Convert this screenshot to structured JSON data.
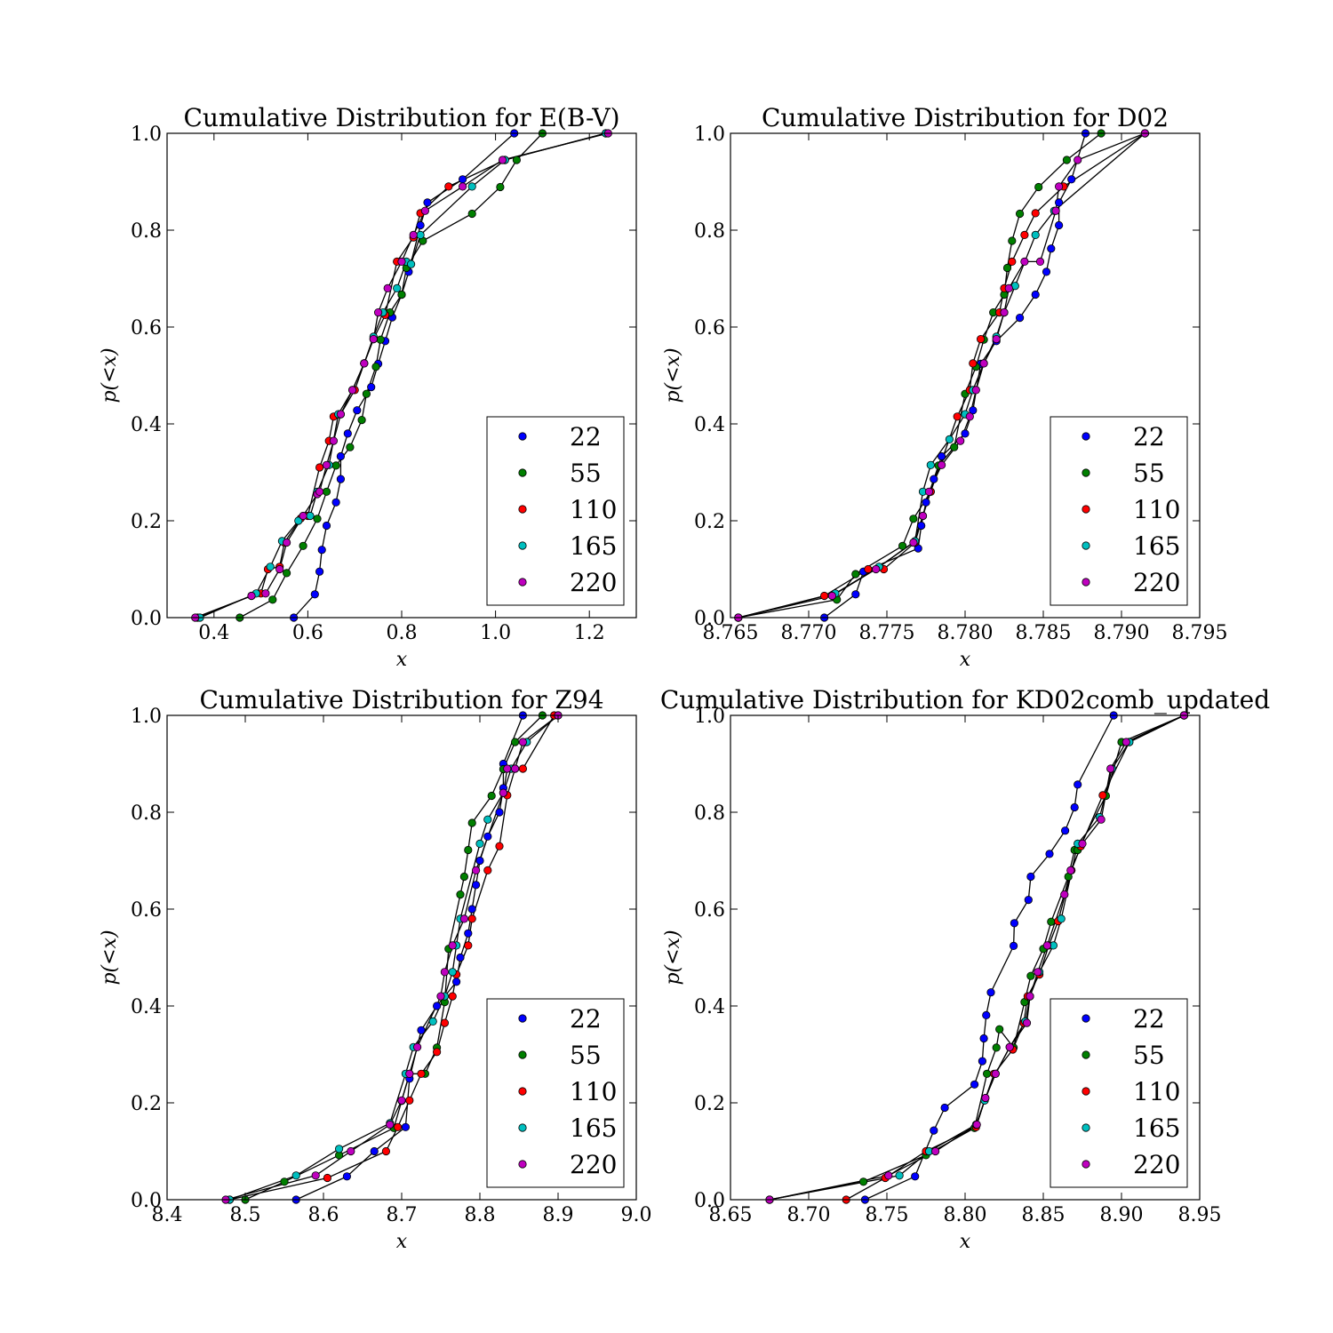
{
  "figure": {
    "xlabel": "x",
    "ylabel": "p(<x)"
  },
  "legend": {
    "placement": "lower-right",
    "entries": [
      {
        "label": "22",
        "color": "#0000ff"
      },
      {
        "label": "55",
        "color": "#007f00"
      },
      {
        "label": "110",
        "color": "#ff0000"
      },
      {
        "label": "165",
        "color": "#00bfbf"
      },
      {
        "label": "220",
        "color": "#bf00bf"
      }
    ]
  },
  "chart_data": [
    {
      "type": "line",
      "title": "Cumulative Distribution for E(B-V)",
      "xlabel": "x",
      "ylabel": "p(<x)",
      "xlim": [
        0.3,
        1.3
      ],
      "ylim": [
        0,
        1.0
      ],
      "xticks": [
        "0.4",
        "0.6",
        "0.8",
        "1.0",
        "1.2"
      ],
      "yticks": [
        "0.0",
        "0.2",
        "0.4",
        "0.6",
        "0.8",
        "1.0"
      ],
      "series": [
        {
          "name": "22",
          "color": "#0000ff",
          "x": [
            0.57,
            0.615,
            0.625,
            0.63,
            0.64,
            0.66,
            0.67,
            0.67,
            0.685,
            0.705,
            0.735,
            0.75,
            0.765,
            0.78,
            0.8,
            0.815,
            0.84,
            0.855,
            0.93,
            1.04
          ],
          "y": [
            0,
            0.048,
            0.095,
            0.14,
            0.19,
            0.238,
            0.286,
            0.333,
            0.38,
            0.428,
            0.476,
            0.524,
            0.571,
            0.62,
            0.667,
            0.714,
            0.81,
            0.857,
            0.905,
            1.0
          ]
        },
        {
          "name": "55",
          "color": "#007f00",
          "x": [
            0.455,
            0.525,
            0.555,
            0.59,
            0.62,
            0.64,
            0.66,
            0.69,
            0.715,
            0.725,
            0.745,
            0.755,
            0.775,
            0.8,
            0.81,
            0.845,
            0.95,
            1.01,
            1.045,
            1.1
          ],
          "y": [
            0,
            0.037,
            0.092,
            0.148,
            0.204,
            0.26,
            0.314,
            0.352,
            0.408,
            0.462,
            0.518,
            0.574,
            0.63,
            0.667,
            0.722,
            0.778,
            0.834,
            0.889,
            0.945,
            1.0
          ]
        },
        {
          "name": "110",
          "color": "#ff0000",
          "x": [
            0.365,
            0.48,
            0.5,
            0.515,
            0.54,
            0.55,
            0.585,
            0.6,
            0.625,
            0.645,
            0.655,
            0.67,
            0.7,
            0.72,
            0.74,
            0.765,
            0.79,
            0.825,
            0.84,
            0.9,
            1.02,
            1.235
          ],
          "y": [
            0,
            0.045,
            0.05,
            0.1,
            0.105,
            0.155,
            0.205,
            0.21,
            0.31,
            0.365,
            0.415,
            0.42,
            0.47,
            0.525,
            0.575,
            0.625,
            0.735,
            0.785,
            0.835,
            0.89,
            0.945,
            1.0
          ]
        },
        {
          "name": "165",
          "color": "#00bfbf",
          "x": [
            0.37,
            0.49,
            0.52,
            0.545,
            0.58,
            0.605,
            0.62,
            0.645,
            0.665,
            0.695,
            0.72,
            0.74,
            0.76,
            0.79,
            0.81,
            0.82,
            0.84,
            0.95,
            1.02,
            1.235
          ],
          "y": [
            0,
            0.05,
            0.105,
            0.158,
            0.2,
            0.21,
            0.26,
            0.315,
            0.42,
            0.47,
            0.525,
            0.58,
            0.63,
            0.68,
            0.735,
            0.73,
            0.79,
            0.89,
            0.945,
            1.0
          ]
        },
        {
          "name": "220",
          "color": "#bf00bf",
          "x": [
            0.36,
            0.48,
            0.51,
            0.54,
            0.555,
            0.59,
            0.62,
            0.625,
            0.64,
            0.655,
            0.67,
            0.695,
            0.72,
            0.74,
            0.75,
            0.77,
            0.8,
            0.825,
            0.85,
            0.93,
            1.015,
            1.24
          ],
          "y": [
            0,
            0.045,
            0.05,
            0.1,
            0.155,
            0.21,
            0.255,
            0.26,
            0.315,
            0.365,
            0.42,
            0.47,
            0.525,
            0.575,
            0.63,
            0.68,
            0.735,
            0.79,
            0.84,
            0.89,
            0.945,
            1.0
          ]
        }
      ]
    },
    {
      "type": "line",
      "title": "Cumulative Distribution for D02",
      "xlabel": "x",
      "ylabel": "p(<x)",
      "xlim": [
        8.765,
        8.795
      ],
      "ylim": [
        0,
        1.0
      ],
      "xticks": [
        "8.765",
        "8.770",
        "8.775",
        "8.780",
        "8.785",
        "8.790",
        "8.795"
      ],
      "yticks": [
        "0.0",
        "0.2",
        "0.4",
        "0.6",
        "0.8",
        "1.0"
      ],
      "series": [
        {
          "name": "22",
          "color": "#0000ff",
          "x": [
            8.771,
            8.773,
            8.7735,
            8.777,
            8.7772,
            8.7775,
            8.778,
            8.7785,
            8.78,
            8.7805,
            8.781,
            8.782,
            8.7835,
            8.7845,
            8.7852,
            8.7855,
            8.786,
            8.786,
            8.7868,
            8.7877
          ],
          "y": [
            0,
            0.048,
            0.095,
            0.143,
            0.19,
            0.238,
            0.286,
            0.333,
            0.38,
            0.428,
            0.524,
            0.571,
            0.619,
            0.667,
            0.714,
            0.762,
            0.81,
            0.857,
            0.905,
            1.0
          ]
        },
        {
          "name": "55",
          "color": "#007f00",
          "x": [
            8.7655,
            8.7718,
            8.773,
            8.776,
            8.7767,
            8.7778,
            8.7783,
            8.7793,
            8.78,
            8.7807,
            8.7812,
            8.7818,
            8.7825,
            8.7827,
            8.783,
            8.7835,
            8.7847,
            8.7865,
            8.7887
          ],
          "y": [
            0,
            0.037,
            0.09,
            0.148,
            0.204,
            0.26,
            0.314,
            0.352,
            0.462,
            0.518,
            0.574,
            0.63,
            0.667,
            0.722,
            0.778,
            0.834,
            0.889,
            0.945,
            1.0
          ]
        },
        {
          "name": "110",
          "color": "#ff0000",
          "x": [
            8.7655,
            8.771,
            8.7738,
            8.7748,
            8.7768,
            8.7773,
            8.7778,
            8.7795,
            8.7803,
            8.7805,
            8.781,
            8.7822,
            8.7825,
            8.783,
            8.7838,
            8.7845,
            8.7863,
            8.7915
          ],
          "y": [
            0,
            0.045,
            0.1,
            0.1,
            0.155,
            0.21,
            0.26,
            0.415,
            0.47,
            0.525,
            0.575,
            0.63,
            0.68,
            0.735,
            0.79,
            0.835,
            0.89,
            1.0
          ]
        },
        {
          "name": "165",
          "color": "#00bfbf",
          "x": [
            8.7655,
            8.7717,
            8.7745,
            8.7768,
            8.7773,
            8.7778,
            8.779,
            8.78,
            8.7805,
            8.7812,
            8.782,
            8.7825,
            8.7832,
            8.7845,
            8.7857,
            8.7915
          ],
          "y": [
            0,
            0.05,
            0.105,
            0.158,
            0.26,
            0.315,
            0.368,
            0.42,
            0.47,
            0.525,
            0.58,
            0.63,
            0.685,
            0.79,
            0.84,
            1.0
          ]
        },
        {
          "name": "220",
          "color": "#bf00bf",
          "x": [
            8.7655,
            8.7715,
            8.7743,
            8.7767,
            8.7773,
            8.7777,
            8.7785,
            8.7797,
            8.7803,
            8.7807,
            8.7812,
            8.782,
            8.7825,
            8.7828,
            8.7838,
            8.7848,
            8.7858,
            8.786,
            8.7872,
            8.7915
          ],
          "y": [
            0,
            0.045,
            0.1,
            0.155,
            0.21,
            0.26,
            0.315,
            0.365,
            0.415,
            0.47,
            0.525,
            0.575,
            0.63,
            0.68,
            0.735,
            0.735,
            0.84,
            0.89,
            0.945,
            1.0
          ]
        }
      ]
    },
    {
      "type": "line",
      "title": "Cumulative Distribution for Z94",
      "xlabel": "x",
      "ylabel": "p(<x)",
      "xlim": [
        8.4,
        9.0
      ],
      "ylim": [
        0,
        1.0
      ],
      "xticks": [
        "8.4",
        "8.5",
        "8.6",
        "8.7",
        "8.8",
        "8.9",
        "9.0"
      ],
      "yticks": [
        "0.0",
        "0.2",
        "0.4",
        "0.6",
        "0.8",
        "1.0"
      ],
      "series": [
        {
          "name": "22",
          "color": "#0000ff",
          "x": [
            8.565,
            8.63,
            8.665,
            8.705,
            8.71,
            8.725,
            8.745,
            8.77,
            8.775,
            8.785,
            8.79,
            8.795,
            8.8,
            8.81,
            8.825,
            8.83,
            8.83,
            8.855
          ],
          "y": [
            0,
            0.048,
            0.1,
            0.15,
            0.25,
            0.35,
            0.4,
            0.45,
            0.5,
            0.55,
            0.6,
            0.65,
            0.7,
            0.75,
            0.8,
            0.85,
            0.9,
            1.0
          ]
        },
        {
          "name": "55",
          "color": "#007f00",
          "x": [
            8.5,
            8.55,
            8.62,
            8.69,
            8.7,
            8.71,
            8.73,
            8.745,
            8.755,
            8.76,
            8.775,
            8.78,
            8.785,
            8.79,
            8.815,
            8.83,
            8.845,
            8.88
          ],
          "y": [
            0,
            0.037,
            0.092,
            0.148,
            0.204,
            0.26,
            0.26,
            0.314,
            0.408,
            0.518,
            0.63,
            0.667,
            0.722,
            0.778,
            0.834,
            0.889,
            0.945,
            1.0
          ]
        },
        {
          "name": "110",
          "color": "#ff0000",
          "x": [
            8.48,
            8.605,
            8.68,
            8.695,
            8.71,
            8.725,
            8.745,
            8.755,
            8.765,
            8.77,
            8.785,
            8.79,
            8.81,
            8.825,
            8.835,
            8.845,
            8.855,
            8.895
          ],
          "y": [
            0,
            0.045,
            0.1,
            0.15,
            0.205,
            0.26,
            0.305,
            0.365,
            0.42,
            0.465,
            0.525,
            0.58,
            0.68,
            0.73,
            0.835,
            0.89,
            0.89,
            1.0
          ]
        },
        {
          "name": "165",
          "color": "#00bfbf",
          "x": [
            8.48,
            8.565,
            8.62,
            8.685,
            8.705,
            8.715,
            8.74,
            8.755,
            8.765,
            8.77,
            8.775,
            8.8,
            8.81,
            8.83,
            8.84,
            8.86,
            8.9
          ],
          "y": [
            0,
            0.05,
            0.105,
            0.158,
            0.26,
            0.315,
            0.368,
            0.42,
            0.47,
            0.525,
            0.58,
            0.735,
            0.785,
            0.84,
            0.89,
            0.945,
            1.0
          ]
        },
        {
          "name": "220",
          "color": "#bf00bf",
          "x": [
            8.475,
            8.59,
            8.635,
            8.685,
            8.7,
            8.71,
            8.72,
            8.75,
            8.755,
            8.765,
            8.78,
            8.795,
            8.83,
            8.835,
            8.845,
            8.855,
            8.9
          ],
          "y": [
            0,
            0.05,
            0.1,
            0.155,
            0.205,
            0.26,
            0.315,
            0.42,
            0.47,
            0.525,
            0.58,
            0.68,
            0.84,
            0.89,
            0.89,
            0.945,
            1.0
          ]
        }
      ]
    },
    {
      "type": "line",
      "title": "Cumulative Distribution for KD02comb_updated",
      "xlabel": "x",
      "ylabel": "p(<x)",
      "xlim": [
        8.65,
        8.95
      ],
      "ylim": [
        0,
        1.0
      ],
      "xticks": [
        "8.65",
        "8.70",
        "8.75",
        "8.80",
        "8.85",
        "8.90",
        "8.95"
      ],
      "yticks": [
        "0.0",
        "0.2",
        "0.4",
        "0.6",
        "0.8",
        "1.0"
      ],
      "series": [
        {
          "name": "22",
          "color": "#0000ff",
          "x": [
            8.736,
            8.768,
            8.78,
            8.787,
            8.806,
            8.811,
            8.812,
            8.8135,
            8.8165,
            8.831,
            8.8315,
            8.8405,
            8.842,
            8.854,
            8.864,
            8.87,
            8.872,
            8.895
          ],
          "y": [
            0,
            0.048,
            0.143,
            0.19,
            0.238,
            0.286,
            0.333,
            0.381,
            0.428,
            0.524,
            0.571,
            0.619,
            0.667,
            0.714,
            0.762,
            0.81,
            0.857,
            1.0
          ]
        },
        {
          "name": "55",
          "color": "#007f00",
          "x": [
            8.675,
            8.735,
            8.775,
            8.806,
            8.814,
            8.82,
            8.822,
            8.831,
            8.838,
            8.842,
            8.85,
            8.855,
            8.866,
            8.87,
            8.872,
            8.89,
            8.9,
            8.94
          ],
          "y": [
            0,
            0.037,
            0.092,
            0.148,
            0.26,
            0.314,
            0.352,
            0.314,
            0.408,
            0.462,
            0.518,
            0.574,
            0.667,
            0.722,
            0.722,
            0.834,
            0.945,
            1.0
          ]
        },
        {
          "name": "110",
          "color": "#ff0000",
          "x": [
            8.724,
            8.749,
            8.775,
            8.807,
            8.8125,
            8.8185,
            8.8305,
            8.8375,
            8.84,
            8.8475,
            8.8535,
            8.8595,
            8.868,
            8.874,
            8.888,
            8.905,
            8.94
          ],
          "y": [
            0,
            0.045,
            0.1,
            0.15,
            0.205,
            0.26,
            0.31,
            0.365,
            0.42,
            0.465,
            0.525,
            0.575,
            0.68,
            0.73,
            0.835,
            0.945,
            1.0
          ]
        },
        {
          "name": "165",
          "color": "#00bfbf",
          "x": [
            8.675,
            8.758,
            8.777,
            8.807,
            8.8125,
            8.8195,
            8.8285,
            8.8385,
            8.8415,
            8.8475,
            8.8565,
            8.8615,
            8.872,
            8.886,
            8.894,
            8.905,
            8.94
          ],
          "y": [
            0,
            0.05,
            0.1,
            0.155,
            0.205,
            0.26,
            0.315,
            0.368,
            0.42,
            0.47,
            0.525,
            0.58,
            0.735,
            0.79,
            0.89,
            0.945,
            1.0
          ]
        },
        {
          "name": "220",
          "color": "#bf00bf",
          "x": [
            8.675,
            8.751,
            8.781,
            8.8075,
            8.813,
            8.8195,
            8.8285,
            8.8395,
            8.8415,
            8.8465,
            8.8525,
            8.8635,
            8.8675,
            8.875,
            8.887,
            8.893,
            8.903,
            8.94
          ],
          "y": [
            0,
            0.05,
            0.1,
            0.155,
            0.21,
            0.26,
            0.315,
            0.365,
            0.42,
            0.47,
            0.525,
            0.63,
            0.68,
            0.735,
            0.785,
            0.89,
            0.945,
            1.0
          ]
        }
      ]
    }
  ]
}
